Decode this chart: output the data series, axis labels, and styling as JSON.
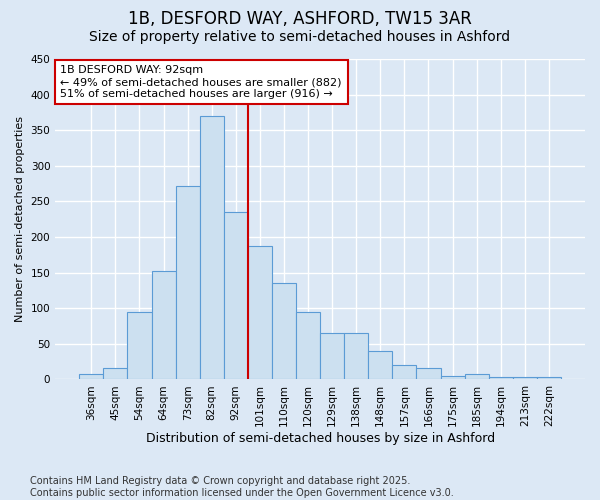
{
  "title": "1B, DESFORD WAY, ASHFORD, TW15 3AR",
  "subtitle": "Size of property relative to semi-detached houses in Ashford",
  "xlabel": "Distribution of semi-detached houses by size in Ashford",
  "ylabel": "Number of semi-detached properties",
  "categories": [
    "36sqm",
    "45sqm",
    "54sqm",
    "64sqm",
    "73sqm",
    "82sqm",
    "92sqm",
    "101sqm",
    "110sqm",
    "120sqm",
    "129sqm",
    "138sqm",
    "148sqm",
    "157sqm",
    "166sqm",
    "175sqm",
    "185sqm",
    "194sqm",
    "213sqm",
    "222sqm"
  ],
  "values": [
    8,
    16,
    95,
    152,
    272,
    370,
    235,
    187,
    135,
    95,
    65,
    65,
    40,
    21,
    16,
    5,
    8,
    4,
    4,
    4
  ],
  "bar_color": "#cce0f0",
  "bar_edge_color": "#5b9bd5",
  "fig_bg_color": "#dce8f5",
  "ax_bg_color": "#dce8f5",
  "grid_color": "#ffffff",
  "annotation_line1": "1B DESFORD WAY: 92sqm",
  "annotation_line2": "← 49% of semi-detached houses are smaller (882)",
  "annotation_line3": "51% of semi-detached houses are larger (916) →",
  "annotation_box_color": "#cc0000",
  "vline_color": "#cc0000",
  "vline_x": 6.5,
  "ylim": [
    0,
    450
  ],
  "yticks": [
    0,
    50,
    100,
    150,
    200,
    250,
    300,
    350,
    400,
    450
  ],
  "footer": "Contains HM Land Registry data © Crown copyright and database right 2025.\nContains public sector information licensed under the Open Government Licence v3.0.",
  "title_fontsize": 12,
  "subtitle_fontsize": 10,
  "xlabel_fontsize": 9,
  "ylabel_fontsize": 8,
  "tick_fontsize": 7.5,
  "annotation_fontsize": 8,
  "footer_fontsize": 7
}
